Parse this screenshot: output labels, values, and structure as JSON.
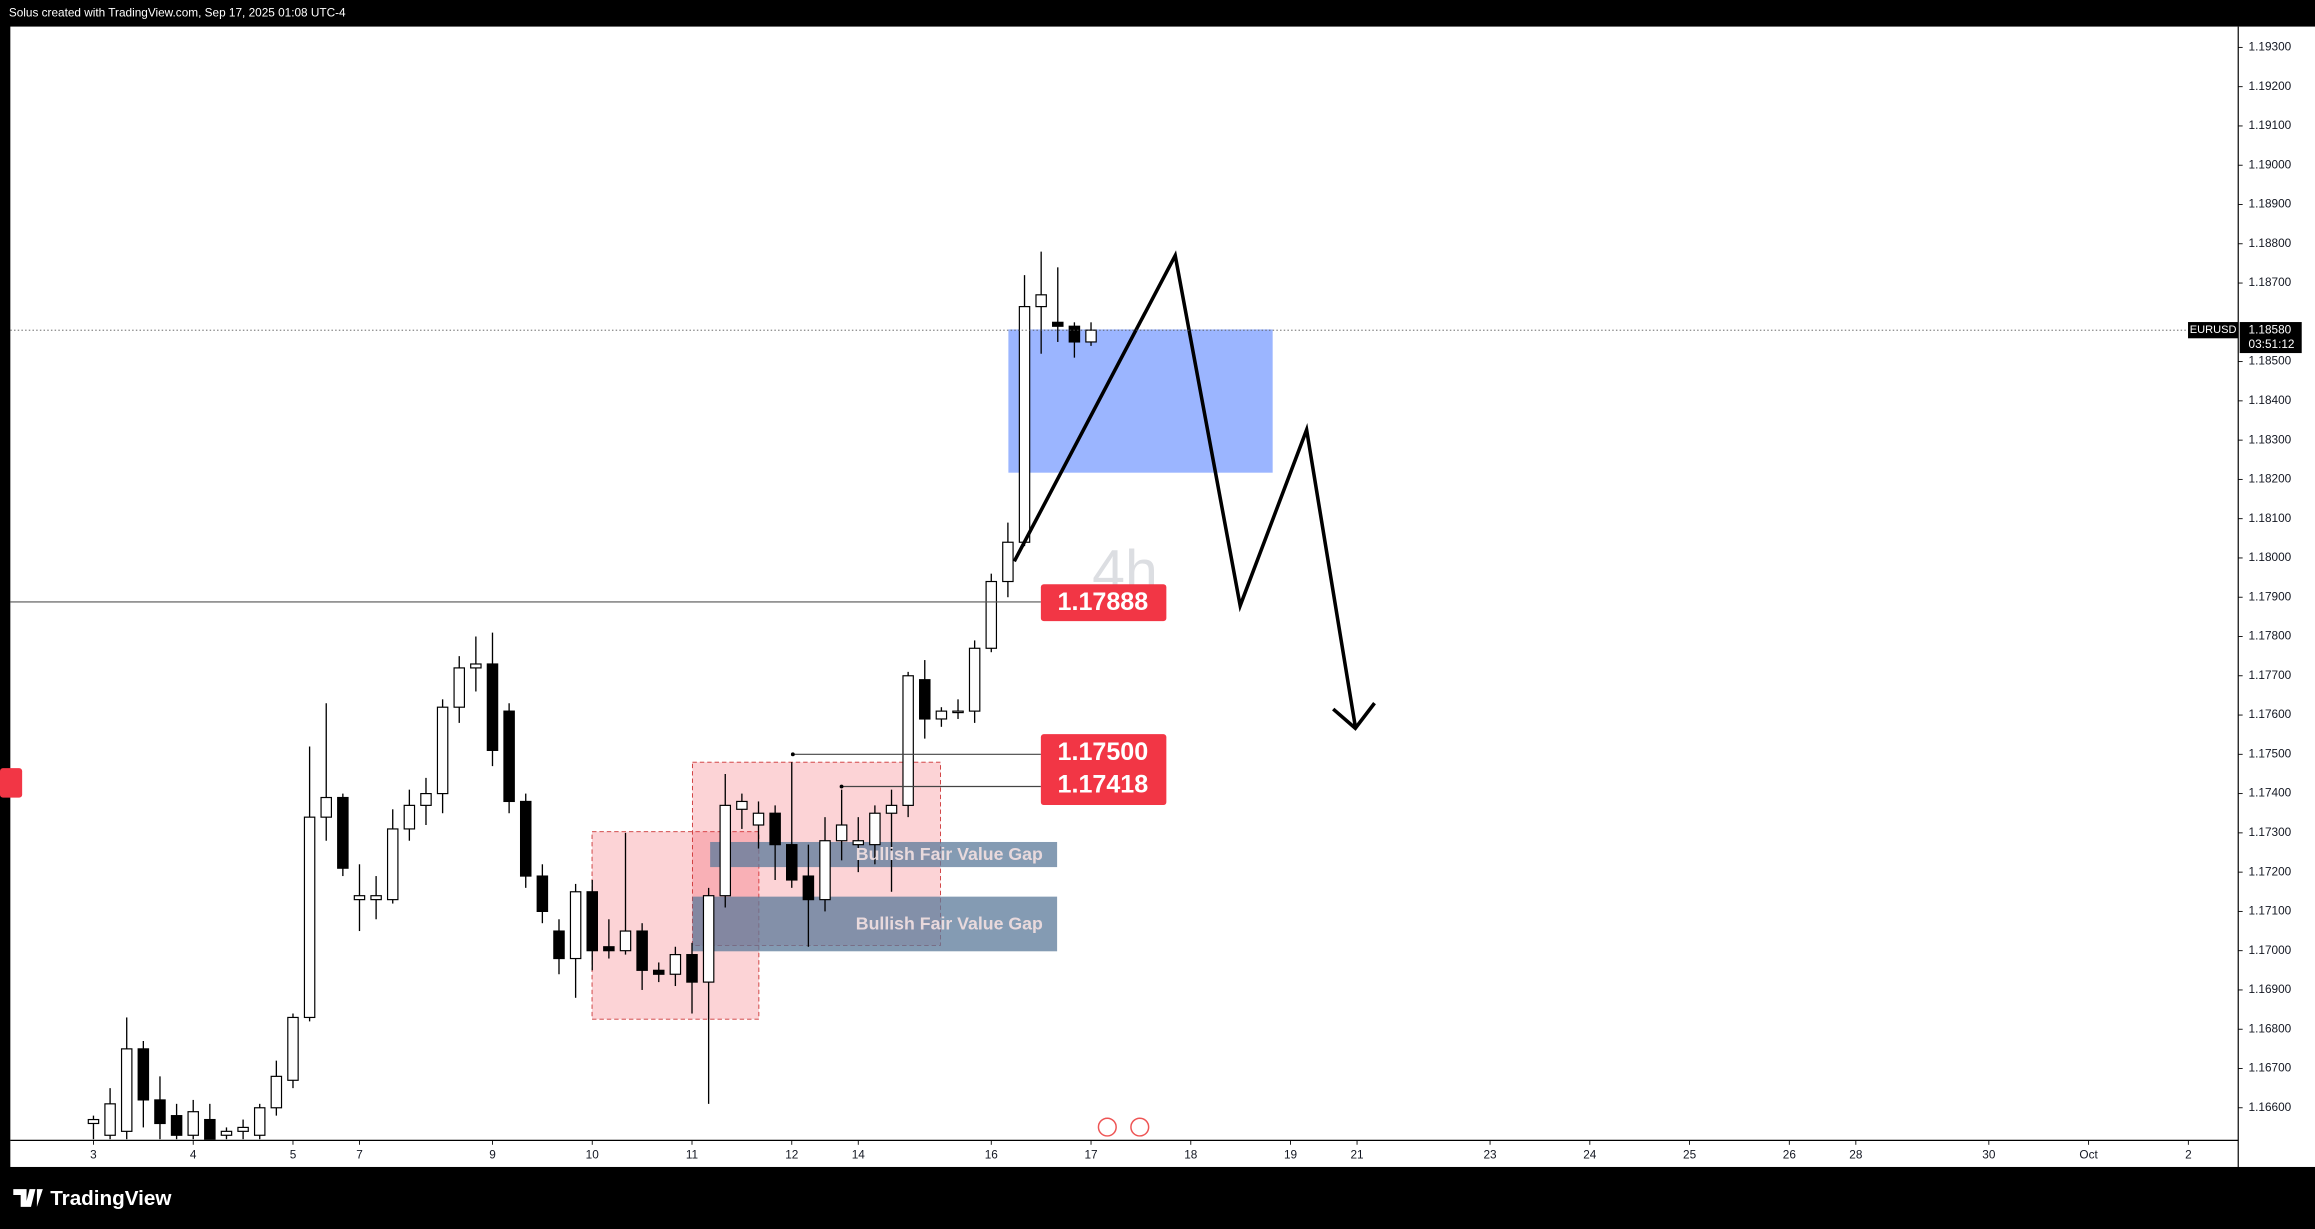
{
  "header": "Solus created with TradingView.com, Sep 17, 2025 01:08 UTC-4",
  "footer": "TradingView",
  "chart_data": {
    "type": "candlestick",
    "watermark": "4h",
    "up_color": "#ffffff",
    "down_color": "#000000",
    "outline_color": "#000000",
    "x": [
      5,
      6,
      7,
      8,
      9,
      10,
      11,
      12,
      13,
      14,
      15,
      16,
      17,
      18,
      19,
      20,
      21,
      22,
      23,
      24,
      25,
      26,
      27,
      28,
      29,
      30,
      31,
      32,
      33,
      34,
      35,
      36,
      37,
      38,
      39,
      40,
      41,
      42,
      43,
      44,
      45,
      46,
      47,
      48,
      49,
      50,
      51,
      52,
      53,
      54,
      55,
      56,
      57,
      58,
      59,
      60,
      61,
      62,
      63,
      64,
      65
    ],
    "open": [
      1.1656,
      1.1653,
      1.1654,
      1.1675,
      1.1662,
      1.1658,
      1.1653,
      1.1657,
      1.1653,
      1.1654,
      1.1653,
      1.166,
      1.1667,
      1.1683,
      1.1734,
      1.1739,
      1.1713,
      1.1713,
      1.1713,
      1.1731,
      1.1737,
      1.174,
      1.1762,
      1.1772,
      1.1773,
      1.1761,
      1.1738,
      1.1719,
      1.1705,
      1.1698,
      1.1715,
      1.1701,
      1.17,
      1.1705,
      1.1695,
      1.1694,
      1.1699,
      1.1692,
      1.1714,
      1.1736,
      1.1732,
      1.1735,
      1.1727,
      1.1719,
      1.1713,
      1.1728,
      1.1727,
      1.1727,
      1.1735,
      1.1737,
      1.1769,
      1.1759,
      1.1761,
      1.1761,
      1.1777,
      1.1794,
      1.1804,
      1.1864,
      1.186,
      1.1859,
      1.1855
    ],
    "high": [
      1.1658,
      1.1665,
      1.1683,
      1.1677,
      1.1668,
      1.1661,
      1.1662,
      1.1661,
      1.1655,
      1.1657,
      1.1661,
      1.1672,
      1.1684,
      1.1752,
      1.1763,
      1.174,
      1.1722,
      1.1719,
      1.1736,
      1.1741,
      1.1744,
      1.1764,
      1.1775,
      1.178,
      1.1781,
      1.1763,
      1.174,
      1.1722,
      1.1708,
      1.1717,
      1.1718,
      1.1708,
      1.173,
      1.1707,
      1.1697,
      1.1701,
      1.1702,
      1.1716,
      1.1745,
      1.174,
      1.1738,
      1.1737,
      1.1748,
      1.1727,
      1.1734,
      1.1741,
      1.1734,
      1.1737,
      1.1741,
      1.1771,
      1.1774,
      1.1762,
      1.1764,
      1.1779,
      1.1796,
      1.1809,
      1.1872,
      1.1878,
      1.1874,
      1.186,
      1.186
    ],
    "low": [
      1.1652,
      1.1652,
      1.1652,
      1.1655,
      1.1652,
      1.1652,
      1.1652,
      1.1652,
      1.1652,
      1.1652,
      1.1652,
      1.1658,
      1.1665,
      1.1682,
      1.1728,
      1.1719,
      1.1705,
      1.1708,
      1.1712,
      1.1728,
      1.1732,
      1.1735,
      1.1758,
      1.1766,
      1.1747,
      1.1735,
      1.1716,
      1.1707,
      1.1694,
      1.1688,
      1.1695,
      1.1698,
      1.1699,
      1.169,
      1.1692,
      1.1691,
      1.1684,
      1.1661,
      1.1711,
      1.1731,
      1.1726,
      1.1718,
      1.1716,
      1.1701,
      1.171,
      1.1723,
      1.172,
      1.1722,
      1.1715,
      1.1734,
      1.1754,
      1.1757,
      1.1759,
      1.1758,
      1.1776,
      1.179,
      1.1803,
      1.1852,
      1.1855,
      1.1851,
      1.1854
    ],
    "close": [
      1.1657,
      1.1661,
      1.1675,
      1.1662,
      1.1656,
      1.1653,
      1.1659,
      1.1652,
      1.1654,
      1.1655,
      1.166,
      1.1668,
      1.1683,
      1.1734,
      1.1739,
      1.1721,
      1.1714,
      1.1714,
      1.1731,
      1.1737,
      1.174,
      1.1762,
      1.1772,
      1.1773,
      1.1751,
      1.1738,
      1.1719,
      1.171,
      1.1698,
      1.1715,
      1.17,
      1.17,
      1.1705,
      1.1695,
      1.1694,
      1.1699,
      1.1692,
      1.1714,
      1.1737,
      1.1738,
      1.1735,
      1.1727,
      1.1718,
      1.1713,
      1.1728,
      1.1732,
      1.1728,
      1.1735,
      1.1737,
      1.177,
      1.1759,
      1.1761,
      1.1761,
      1.1777,
      1.1794,
      1.1804,
      1.1864,
      1.1867,
      1.1859,
      1.1855,
      1.1858
    ],
    "xlim": [
      0,
      134
    ],
    "xticks": [
      {
        "value": 5,
        "label": "3"
      },
      {
        "value": 11,
        "label": "4"
      },
      {
        "value": 17,
        "label": "5"
      },
      {
        "value": 21,
        "label": "7"
      },
      {
        "value": 29,
        "label": "9"
      },
      {
        "value": 35,
        "label": "10"
      },
      {
        "value": 41,
        "label": "11"
      },
      {
        "value": 47,
        "label": "12"
      },
      {
        "value": 51,
        "label": "14"
      },
      {
        "value": 59,
        "label": "16"
      },
      {
        "value": 65,
        "label": "17"
      },
      {
        "value": 71,
        "label": "18"
      },
      {
        "value": 77,
        "label": "19"
      },
      {
        "value": 81,
        "label": "21"
      },
      {
        "value": 89,
        "label": "23"
      },
      {
        "value": 95,
        "label": "24"
      },
      {
        "value": 101,
        "label": "25"
      },
      {
        "value": 107,
        "label": "26"
      },
      {
        "value": 111,
        "label": "28"
      },
      {
        "value": 119,
        "label": "30"
      },
      {
        "value": 125,
        "label": "Oct"
      },
      {
        "value": 131,
        "label": "2"
      }
    ],
    "ylim": [
      1.16517,
      1.19353
    ],
    "yticks": [
      {
        "value": 1.166,
        "label": "1.16600"
      },
      {
        "value": 1.167,
        "label": "1.16700"
      },
      {
        "value": 1.168,
        "label": "1.16800"
      },
      {
        "value": 1.169,
        "label": "1.16900"
      },
      {
        "value": 1.17,
        "label": "1.17000"
      },
      {
        "value": 1.171,
        "label": "1.17100"
      },
      {
        "value": 1.172,
        "label": "1.17200"
      },
      {
        "value": 1.173,
        "label": "1.17300"
      },
      {
        "value": 1.174,
        "label": "1.17400"
      },
      {
        "value": 1.175,
        "label": "1.17500"
      },
      {
        "value": 1.176,
        "label": "1.17600"
      },
      {
        "value": 1.177,
        "label": "1.17700"
      },
      {
        "value": 1.178,
        "label": "1.17800"
      },
      {
        "value": 1.179,
        "label": "1.17900"
      },
      {
        "value": 1.18,
        "label": "1.18000"
      },
      {
        "value": 1.181,
        "label": "1.18100"
      },
      {
        "value": 1.182,
        "label": "1.18200"
      },
      {
        "value": 1.183,
        "label": "1.18300"
      },
      {
        "value": 1.184,
        "label": "1.18400"
      },
      {
        "value": 1.185,
        "label": "1.18500"
      },
      {
        "value": 1.187,
        "label": "1.18700"
      },
      {
        "value": 1.188,
        "label": "1.18800"
      },
      {
        "value": 1.189,
        "label": "1.18900"
      },
      {
        "value": 1.19,
        "label": "1.19000"
      },
      {
        "value": 1.191,
        "label": "1.19100"
      },
      {
        "value": 1.192,
        "label": "1.19200"
      },
      {
        "value": 1.193,
        "label": "1.19300"
      }
    ],
    "price_lines": [
      {
        "value": 1.17888,
        "label": "1.17888"
      },
      {
        "value": 1.175,
        "label": "1.17500"
      },
      {
        "value": 1.17418,
        "label": "1.17418"
      }
    ],
    "price_line_color": "#f23645",
    "current_price": {
      "symbol": "EURUSD",
      "value": 1.1858,
      "label": "1.18580",
      "countdown": "03:51:12"
    },
    "annotations": [
      "Bullish Fair Value Gap",
      "Bullish Fair Value Gap"
    ]
  }
}
